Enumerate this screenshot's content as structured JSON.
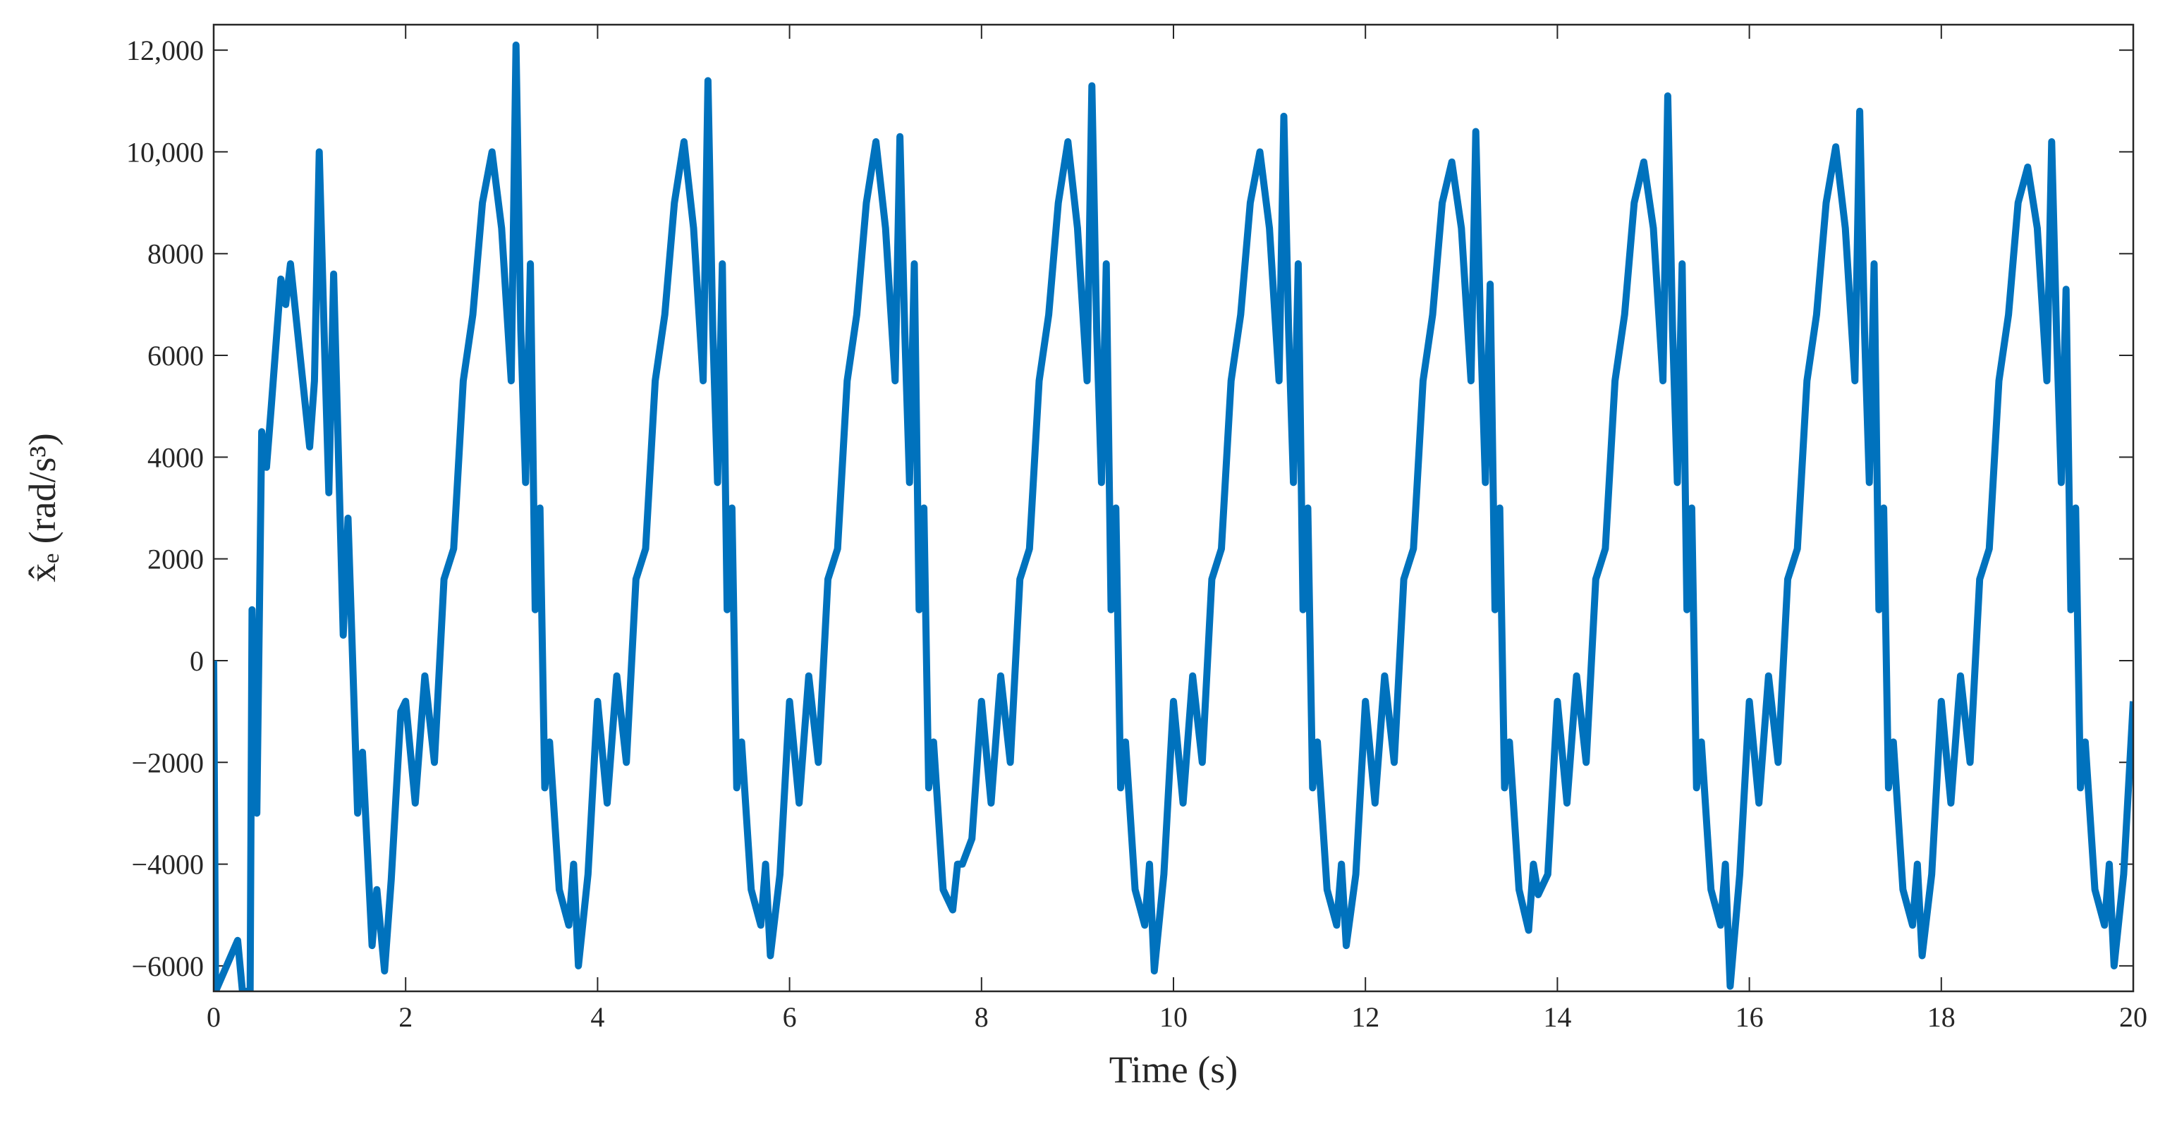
{
  "chart_data": {
    "type": "line",
    "xlabel": "Time (s)",
    "ylabel": "x̂ₑ (rad/s³)",
    "color": "#0072BD",
    "xlim": [
      0,
      20
    ],
    "xticks": [
      0,
      2,
      4,
      6,
      8,
      10,
      12,
      14,
      16,
      18,
      20
    ],
    "ylim": [
      -6500,
      12500
    ],
    "yticks": [
      {
        "value": -6000,
        "label": "−6000"
      },
      {
        "value": -4000,
        "label": "−4000"
      },
      {
        "value": -2000,
        "label": "−2000"
      },
      0,
      2000,
      4000,
      6000,
      8000,
      {
        "value": 10000,
        "label": "10,000"
      },
      {
        "value": 12000,
        "label": "12,000"
      }
    ],
    "x": [
      0,
      0.02,
      0.25,
      0.3,
      0.38,
      0.4,
      0.45,
      0.5,
      0.55,
      0.6,
      0.7,
      0.75,
      0.8,
      0.9,
      1.0,
      1.05,
      1.1,
      1.15,
      1.2,
      1.25,
      1.35,
      1.4,
      1.5,
      1.55,
      1.65,
      1.7,
      1.78,
      1.85,
      1.95,
      2,
      2.1,
      2.2,
      2.3,
      2.4,
      2.5,
      2.6,
      2.7,
      2.8,
      2.9,
      3,
      3.1,
      3.15,
      3.2,
      3.25,
      3.3,
      3.35,
      3.4,
      3.45,
      3.5,
      3.6,
      3.7,
      3.75,
      3.8,
      3.9,
      4,
      4.1,
      4.2,
      4.3,
      4.4,
      4.5,
      4.6,
      4.7,
      4.8,
      4.9,
      5,
      5.1,
      5.15,
      5.2,
      5.25,
      5.3,
      5.35,
      5.4,
      5.45,
      5.5,
      5.6,
      5.7,
      5.75,
      5.8,
      5.9,
      6,
      6.1,
      6.2,
      6.3,
      6.4,
      6.5,
      6.6,
      6.7,
      6.8,
      6.9,
      7,
      7.1,
      7.15,
      7.2,
      7.25,
      7.3,
      7.35,
      7.4,
      7.45,
      7.5,
      7.6,
      7.7,
      7.75,
      7.8,
      7.9,
      8,
      8.1,
      8.2,
      8.3,
      8.4,
      8.5,
      8.6,
      8.7,
      8.8,
      8.9,
      9,
      9.1,
      9.15,
      9.2,
      9.25,
      9.3,
      9.35,
      9.4,
      9.45,
      9.5,
      9.6,
      9.7,
      9.75,
      9.8,
      9.9,
      10,
      10.1,
      10.2,
      10.3,
      10.4,
      10.5,
      10.6,
      10.7,
      10.8,
      10.9,
      11,
      11.1,
      11.15,
      11.2,
      11.25,
      11.3,
      11.35,
      11.4,
      11.45,
      11.5,
      11.6,
      11.7,
      11.75,
      11.8,
      11.9,
      12,
      12.1,
      12.2,
      12.3,
      12.4,
      12.5,
      12.6,
      12.7,
      12.8,
      12.9,
      13,
      13.1,
      13.15,
      13.2,
      13.25,
      13.3,
      13.35,
      13.4,
      13.45,
      13.5,
      13.6,
      13.7,
      13.75,
      13.8,
      13.9,
      14,
      14.1,
      14.2,
      14.3,
      14.4,
      14.5,
      14.6,
      14.7,
      14.8,
      14.9,
      15,
      15.1,
      15.15,
      15.2,
      15.25,
      15.3,
      15.35,
      15.4,
      15.45,
      15.5,
      15.6,
      15.7,
      15.75,
      15.8,
      15.9,
      16,
      16.1,
      16.2,
      16.3,
      16.4,
      16.5,
      16.6,
      16.7,
      16.8,
      16.9,
      17,
      17.1,
      17.15,
      17.2,
      17.25,
      17.3,
      17.35,
      17.4,
      17.45,
      17.5,
      17.6,
      17.7,
      17.75,
      17.8,
      17.9,
      18,
      18.1,
      18.2,
      18.3,
      18.4,
      18.5,
      18.6,
      18.7,
      18.8,
      18.9,
      19,
      19.1,
      19.15,
      19.2,
      19.25,
      19.3,
      19.35,
      19.4,
      19.45,
      19.5,
      19.6,
      19.7,
      19.75,
      19.8,
      19.9,
      20
    ],
    "values": [
      0,
      -6500,
      -5500,
      -6500,
      -6500,
      1000,
      -3000,
      4500,
      3800,
      5000,
      7500,
      7000,
      7800,
      6000,
      4200,
      5500,
      10000,
      6500,
      3300,
      7600,
      500,
      2800,
      -3000,
      -1800,
      -5600,
      -4500,
      -6100,
      -4300,
      -1000,
      -800,
      -2800,
      -300,
      -2000,
      1600,
      2200,
      5500,
      6800,
      9000,
      10000,
      8500,
      5500,
      12100,
      6500,
      3500,
      7800,
      1000,
      3000,
      -2500,
      -1600,
      -4500,
      -5200,
      -4000,
      -6000,
      -4200,
      -800,
      -2800,
      -300,
      -2000,
      1600,
      2200,
      5500,
      6800,
      9000,
      10200,
      8500,
      5500,
      11400,
      6500,
      3500,
      7800,
      1000,
      3000,
      -2500,
      -1600,
      -4500,
      -5200,
      -4000,
      -5800,
      -4200,
      -800,
      -2800,
      -300,
      -2000,
      1600,
      2200,
      5500,
      6800,
      9000,
      10200,
      8500,
      5500,
      10300,
      6500,
      3500,
      7800,
      1000,
      3000,
      -2500,
      -1600,
      -4500,
      -4900,
      -4000,
      -4000,
      -3500,
      -800,
      -2800,
      -300,
      -2000,
      1600,
      2200,
      5500,
      6800,
      9000,
      10200,
      8500,
      5500,
      11300,
      6500,
      3500,
      7800,
      1000,
      3000,
      -2500,
      -1600,
      -4500,
      -5200,
      -4000,
      -6100,
      -4200,
      -800,
      -2800,
      -300,
      -2000,
      1600,
      2200,
      5500,
      6800,
      9000,
      10000,
      8500,
      5500,
      10700,
      6500,
      3500,
      7800,
      1000,
      3000,
      -2500,
      -1600,
      -4500,
      -5200,
      -4000,
      -5600,
      -4200,
      -800,
      -2800,
      -300,
      -2000,
      1600,
      2200,
      5500,
      6800,
      9000,
      9800,
      8500,
      5500,
      10400,
      6500,
      3500,
      7400,
      1000,
      3000,
      -2500,
      -1600,
      -4500,
      -5300,
      -4000,
      -4600,
      -4200,
      -800,
      -2800,
      -300,
      -2000,
      1600,
      2200,
      5500,
      6800,
      9000,
      9800,
      8500,
      5500,
      11100,
      6500,
      3500,
      7800,
      1000,
      3000,
      -2500,
      -1600,
      -4500,
      -5200,
      -4000,
      -6400,
      -4200,
      -800,
      -2800,
      -300,
      -2000,
      1600,
      2200,
      5500,
      6800,
      9000,
      10100,
      8500,
      5500,
      10800,
      6500,
      3500,
      7800,
      1000,
      3000,
      -2500,
      -1600,
      -4500,
      -5200,
      -4000,
      -5800,
      -4200,
      -800,
      -2800,
      -300,
      -2000,
      1600,
      2200,
      5500,
      6800,
      9000,
      9700,
      8500,
      5500,
      10200,
      6500,
      3500,
      7300,
      1000,
      3000,
      -2500,
      -1600,
      -4500,
      -5200,
      -4000,
      -6000,
      -4200,
      -800
    ]
  }
}
